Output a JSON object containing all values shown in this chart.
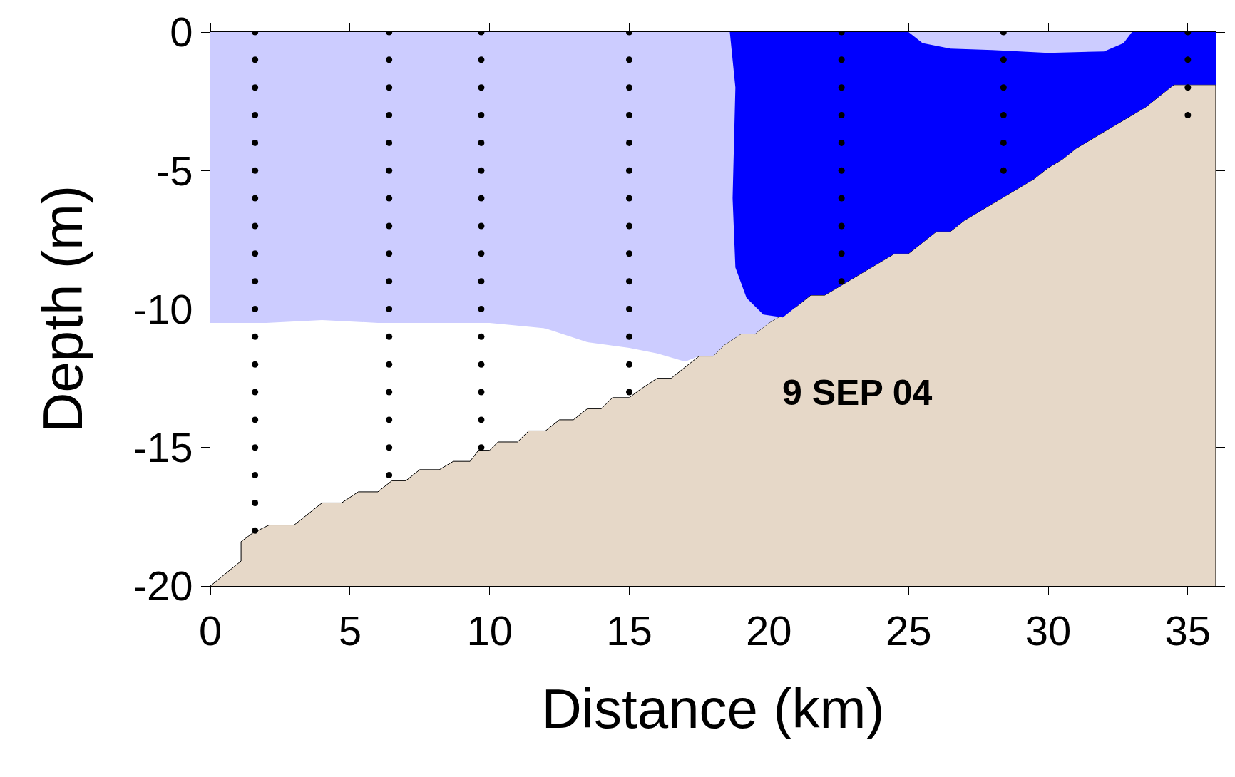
{
  "chart_data": {
    "type": "area",
    "xlabel": "Distance (km)",
    "ylabel": "Depth (m)",
    "xlim": [
      0,
      36
    ],
    "ylim": [
      -20,
      0
    ],
    "xticks": [
      0,
      5,
      10,
      15,
      20,
      25,
      30,
      35
    ],
    "yticks": [
      -20,
      -15,
      -10,
      -5,
      0
    ],
    "annotations": [
      "9 SEP 04"
    ],
    "series": [
      {
        "color": "#e6d8c8",
        "x": [
          0,
          1.1,
          1.1,
          1.5,
          2.1,
          3,
          3.5,
          4,
          4.7,
          5.3,
          6,
          6.5,
          7,
          7.5,
          8.2,
          8.7,
          9.3,
          9.6,
          10,
          10.3,
          11,
          11.4,
          12,
          12.5,
          13,
          13.5,
          14,
          14.4,
          15,
          15.4,
          16,
          16.5,
          17,
          17.5,
          18,
          18.4,
          19,
          19.5,
          20,
          20.5,
          21,
          21.5,
          22,
          22.5,
          23,
          23.5,
          24,
          24.5,
          25,
          25.5,
          26,
          26.5,
          27,
          27.5,
          28,
          28.5,
          29,
          29.5,
          30,
          30.5,
          31,
          31.5,
          32,
          32.5,
          33,
          33.5,
          34,
          34.5,
          36,
          36
        ],
        "values": [
          -20,
          -19.1,
          -18.4,
          -18.1,
          -17.8,
          -17.8,
          -17.4,
          -17,
          -17,
          -16.6,
          -16.6,
          -16.2,
          -16.2,
          -15.8,
          -15.8,
          -15.5,
          -15.5,
          -15.1,
          -15.1,
          -14.8,
          -14.8,
          -14.4,
          -14.4,
          -14.0,
          -14.0,
          -13.6,
          -13.6,
          -13.2,
          -13.2,
          -12.9,
          -12.5,
          -12.5,
          -12.1,
          -11.7,
          -11.7,
          -11.3,
          -10.9,
          -10.9,
          -10.5,
          -10.2,
          -9.9,
          -9.5,
          -9.5,
          -9.2,
          -8.9,
          -8.6,
          -8.3,
          -8.0,
          -8.0,
          -7.6,
          -7.2,
          -7.2,
          -6.8,
          -6.5,
          -6.2,
          -5.9,
          -5.6,
          -5.3,
          -4.9,
          -4.6,
          -4.2,
          -3.9,
          -3.6,
          -3.3,
          -3.0,
          -2.7,
          -2.3,
          -1.9,
          -1.9,
          -20
        ]
      },
      {
        "color": "#ccccff",
        "x": [
          0,
          2,
          4,
          6,
          8,
          10,
          12,
          13.5,
          15,
          16,
          17,
          17.5,
          18,
          18.4,
          19,
          19.5,
          20,
          20.5
        ],
        "values": [
          -10.5,
          -10.5,
          -10.4,
          -10.5,
          -10.5,
          -10.5,
          -10.7,
          -11.2,
          -11.4,
          -11.6,
          -11.9,
          -11.7,
          -11.7,
          -11.3,
          -10.9,
          -10.9,
          -10.5,
          -10.2
        ]
      },
      {
        "color": "#0000ff",
        "x": [
          18.6,
          18.8,
          18.7,
          18.8,
          19.2,
          19.8,
          20.5,
          21,
          21.5,
          22,
          22.5,
          23,
          23.5,
          24,
          24.5,
          25,
          25.5,
          26,
          26.5,
          27,
          27.5,
          28,
          28.5,
          29,
          29.5,
          30,
          30.5,
          31,
          31.5,
          32,
          32.5,
          33,
          33.5,
          34,
          34.5,
          36
        ],
        "values": [
          0,
          -2,
          -6,
          -8.5,
          -9.6,
          -10.2,
          -10.3,
          -9.9,
          -9.5,
          -9.5,
          -9.2,
          -8.9,
          -8.6,
          -8.3,
          -8.0,
          -8.0,
          -7.6,
          -7.2,
          -7.2,
          -6.8,
          -6.5,
          -6.2,
          -5.9,
          -5.6,
          -5.3,
          -4.9,
          -4.6,
          -4.2,
          -3.9,
          -3.6,
          -3.3,
          -3.0,
          -2.7,
          -2.3,
          -1.9,
          -1.9
        ]
      },
      {
        "color": "#ccccff",
        "x": [
          25,
          25.5,
          26.5,
          28,
          30,
          32,
          32.7,
          33
        ],
        "values": [
          0,
          -0.4,
          -0.6,
          -0.65,
          -0.75,
          -0.7,
          -0.4,
          0
        ]
      },
      {
        "type": "scatter",
        "color": "#000000",
        "marker": "circle",
        "x": [
          1.6,
          1.6,
          1.6,
          1.6,
          1.6,
          1.6,
          1.6,
          1.6,
          1.6,
          1.6,
          1.6,
          1.6,
          1.6,
          1.6,
          1.6,
          1.6,
          1.6,
          1.6,
          1.6,
          6.4,
          6.4,
          6.4,
          6.4,
          6.4,
          6.4,
          6.4,
          6.4,
          6.4,
          6.4,
          6.4,
          6.4,
          6.4,
          6.4,
          6.4,
          6.4,
          6.4,
          9.7,
          9.7,
          9.7,
          9.7,
          9.7,
          9.7,
          9.7,
          9.7,
          9.7,
          9.7,
          9.7,
          9.7,
          9.7,
          9.7,
          9.7,
          9.7,
          15,
          15,
          15,
          15,
          15,
          15,
          15,
          15,
          15,
          15,
          15,
          15,
          15,
          15,
          22.6,
          22.6,
          22.6,
          22.6,
          22.6,
          22.6,
          22.6,
          22.6,
          22.6,
          22.6,
          28.4,
          28.4,
          28.4,
          28.4,
          28.4,
          28.4,
          35,
          35,
          35,
          35
        ],
        "values": [
          0,
          -1,
          -2,
          -3,
          -4,
          -5,
          -6,
          -7,
          -8,
          -9,
          -10,
          -11,
          -12,
          -13,
          -14,
          -15,
          -16,
          -17,
          -18,
          0,
          -1,
          -2,
          -3,
          -4,
          -5,
          -6,
          -7,
          -8,
          -9,
          -10,
          -11,
          -12,
          -13,
          -14,
          -15,
          -16,
          0,
          -1,
          -2,
          -3,
          -4,
          -5,
          -6,
          -7,
          -8,
          -9,
          -10,
          -11,
          -12,
          -13,
          -14,
          -15,
          0,
          -1,
          -2,
          -3,
          -4,
          -5,
          -6,
          -7,
          -8,
          -9,
          -10,
          -11,
          -12,
          -13,
          0,
          -1,
          -2,
          -3,
          -4,
          -5,
          -6,
          -7,
          -8,
          -9,
          0,
          -1,
          -2,
          -3,
          -4,
          -5,
          0,
          -1,
          -2,
          -3
        ]
      }
    ]
  }
}
